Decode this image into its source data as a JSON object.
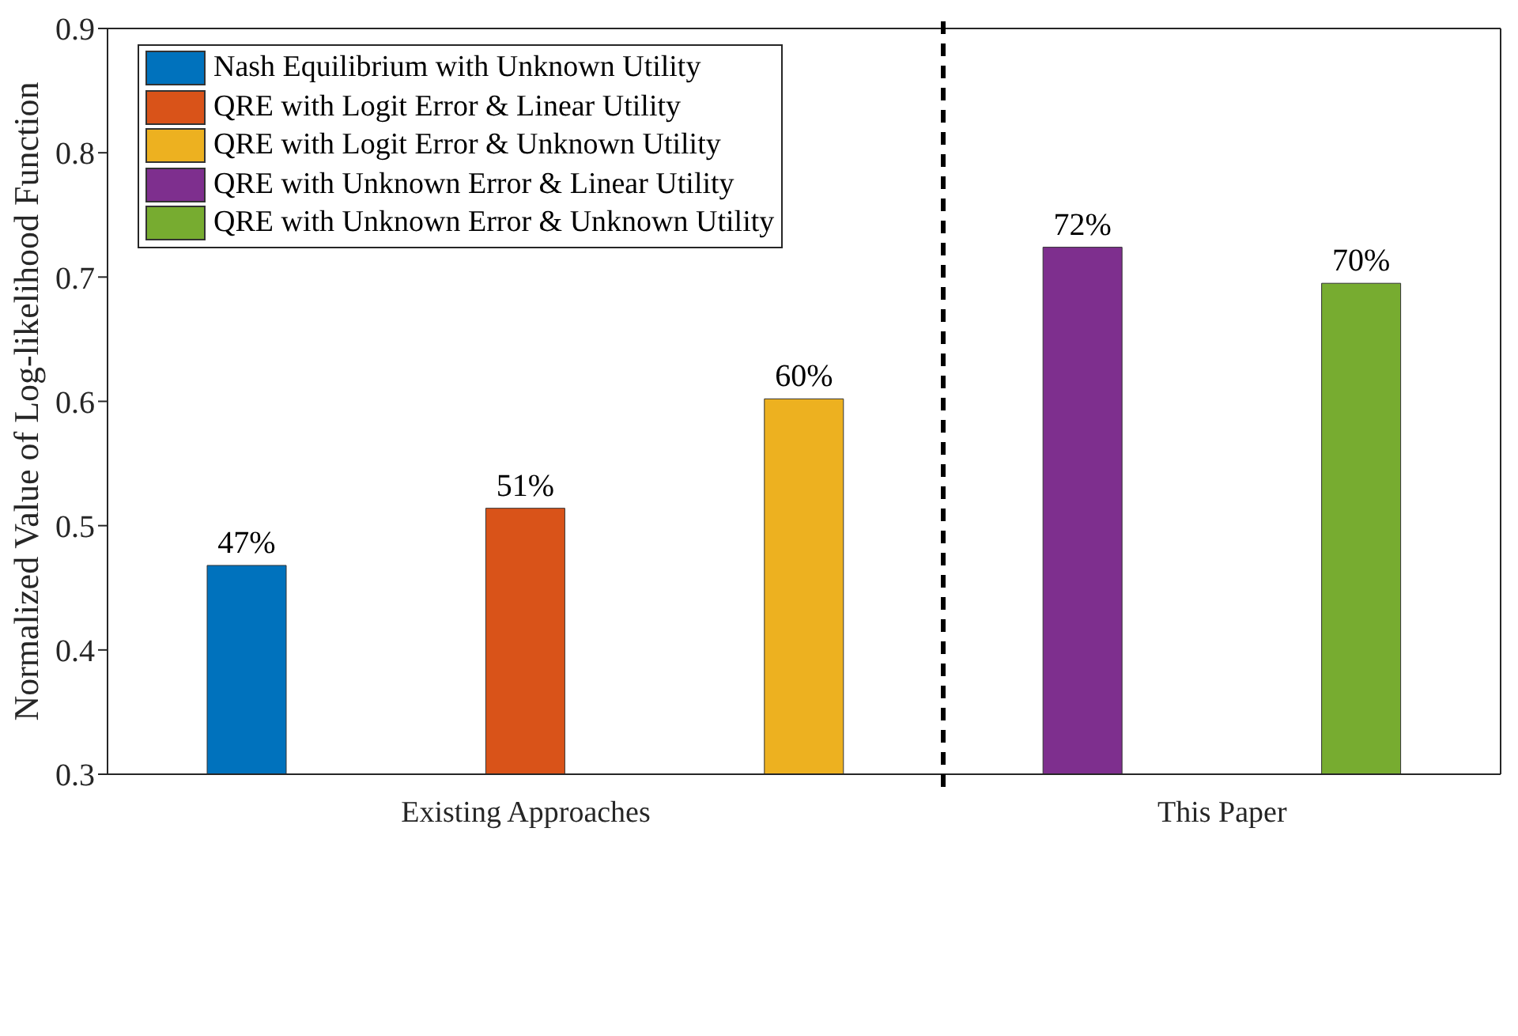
{
  "chart_data": {
    "type": "bar",
    "ylabel": "Normalized Value of Log-likelihood Function",
    "categories": [
      "Existing Approaches",
      "This Paper"
    ],
    "series": [
      {
        "name": "Nash Equilibrium with Unknown Utility",
        "color": "#0072bd",
        "values": [
          0.468,
          null
        ],
        "value_labels": [
          "47%",
          null
        ]
      },
      {
        "name": "QRE with Logit Error & Linear Utility",
        "color": "#d95319",
        "values": [
          0.514,
          null
        ],
        "value_labels": [
          "51%",
          null
        ]
      },
      {
        "name": "QRE with Logit Error & Unknown Utility",
        "color": "#edb120",
        "values": [
          0.602,
          null
        ],
        "value_labels": [
          "60%",
          null
        ]
      },
      {
        "name": "QRE with Unknown Error & Linear Utility",
        "color": "#7e2f8e",
        "values": [
          null,
          0.724
        ],
        "value_labels": [
          null,
          "72%"
        ]
      },
      {
        "name": "QRE with Unknown Error & Unknown Utility",
        "color": "#77ac30",
        "values": [
          null,
          0.695
        ],
        "value_labels": [
          null,
          "70%"
        ]
      }
    ],
    "ylim": [
      0.3,
      0.9
    ],
    "yticks": [
      0.3,
      0.4,
      0.5,
      0.6,
      0.7,
      0.8,
      0.9
    ],
    "ref_lines": [
      {
        "axis": "x",
        "value": "This Paper",
        "color": "#000000",
        "line_style": "dashed"
      }
    ],
    "grid": false,
    "legend": "top left"
  }
}
